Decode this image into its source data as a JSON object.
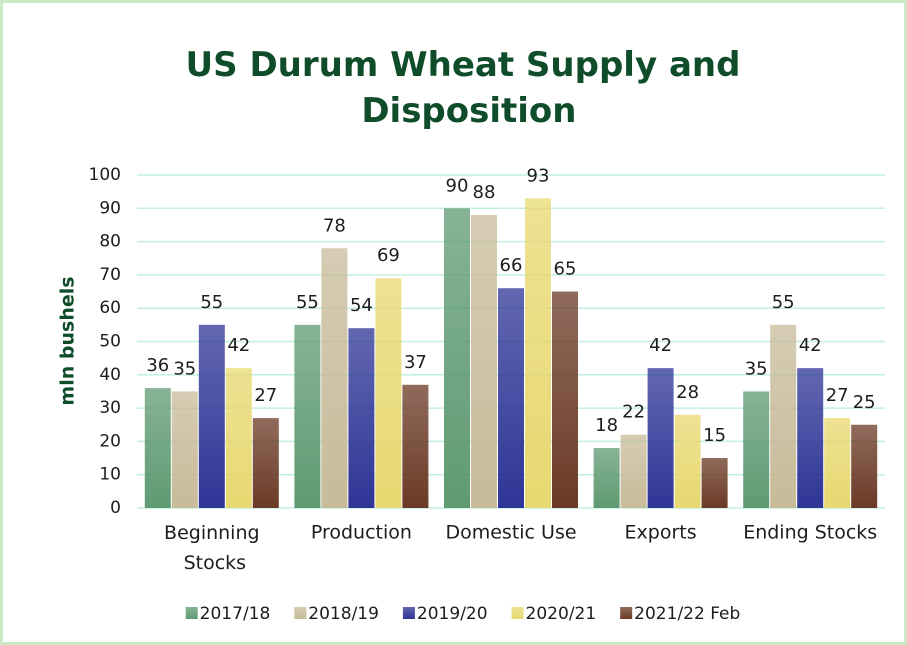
{
  "chart_data": {
    "type": "bar",
    "title": "US Durum Wheat Supply and Disposition",
    "y_label": "mln bushels",
    "categories": [
      "Beginning Stocks",
      "Production",
      "Domestic Use",
      "Exports",
      "Ending Stocks"
    ],
    "series": [
      {
        "name": "2017/18",
        "color": "#5f9a72",
        "values": [
          36,
          55,
          90,
          18,
          35
        ]
      },
      {
        "name": "2018/19",
        "color": "#c8bb9a",
        "values": [
          35,
          78,
          88,
          22,
          55
        ]
      },
      {
        "name": "2019/20",
        "color": "#2e3596",
        "values": [
          55,
          54,
          66,
          42,
          42
        ]
      },
      {
        "name": "2020/21",
        "color": "#e8d870",
        "values": [
          42,
          69,
          93,
          28,
          27
        ]
      },
      {
        "name": "2021/22 Feb",
        "color": "#6b3a26",
        "values": [
          27,
          37,
          65,
          15,
          25
        ]
      }
    ],
    "ylim": [
      0,
      100
    ],
    "yticks": [
      0,
      10,
      20,
      30,
      40,
      50,
      60,
      70,
      80,
      90,
      100
    ],
    "grid": true,
    "legend": "bottom"
  }
}
